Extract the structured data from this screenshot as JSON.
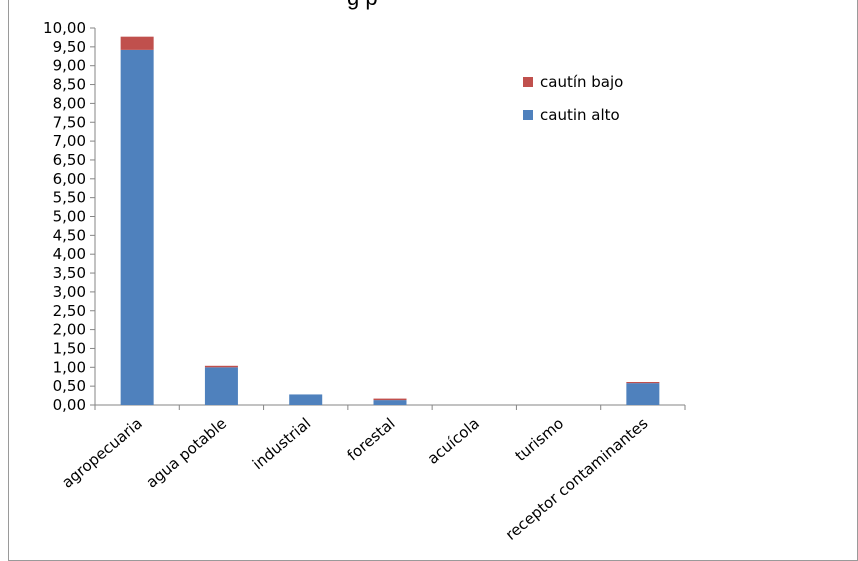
{
  "title_fragment": "g p",
  "chart_data": {
    "type": "bar",
    "stacked": true,
    "categories": [
      "agropecuaria",
      "agua potable",
      "industrial",
      "forestal",
      "acuícola",
      "turismo",
      "receptor contaminantes"
    ],
    "series": [
      {
        "name": "cautin alto",
        "color": "#4f81bd",
        "values": [
          9.42,
          1.0,
          0.28,
          0.13,
          0.0,
          0.0,
          0.58
        ]
      },
      {
        "name": "cautín bajo",
        "color": "#c0504d",
        "values": [
          0.35,
          0.04,
          0.0,
          0.04,
          0.0,
          0.0,
          0.03
        ]
      }
    ],
    "ylim": [
      0,
      10
    ],
    "ytick_step": 0.5,
    "ytick_labels": [
      "0,00",
      "0,50",
      "1,00",
      "1,50",
      "2,00",
      "2,50",
      "3,00",
      "3,50",
      "4,00",
      "4,50",
      "5,00",
      "5,50",
      "6,00",
      "6,50",
      "7,00",
      "7,50",
      "8,00",
      "8,50",
      "9,00",
      "9,50",
      "10,00"
    ],
    "legend": {
      "placement": "top-right",
      "entries": [
        "cautín bajo",
        "cautin alto"
      ]
    },
    "grid": false
  }
}
